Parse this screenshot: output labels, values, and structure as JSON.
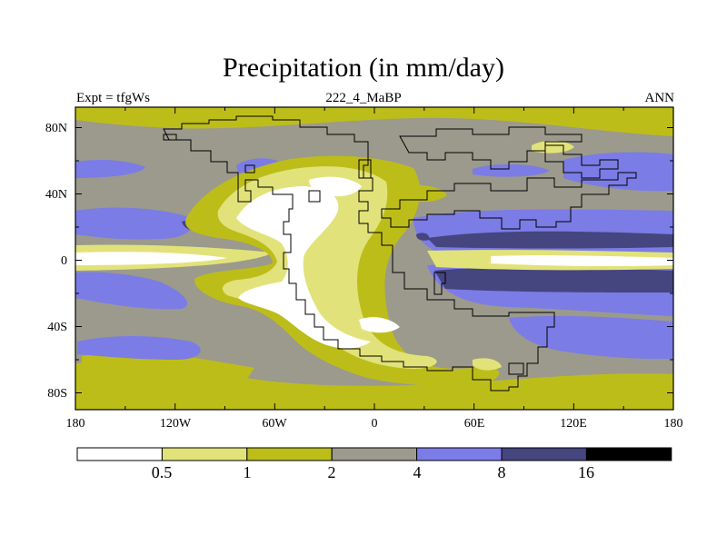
{
  "plot": {
    "title": "Precipitation (in mm/day)",
    "left_label": "Expt = tfgWs",
    "center_label": "222_4_MaBP",
    "right_label": "ANN"
  },
  "axes": {
    "lon_ticks": [
      "180",
      "120W",
      "60W",
      "0",
      "60E",
      "120E",
      "180"
    ],
    "lat_ticks": [
      "80N",
      "40N",
      "0",
      "40S",
      "80S"
    ]
  },
  "colorbar": {
    "levels": [
      "0.5",
      "1",
      "2",
      "4",
      "8",
      "16"
    ],
    "colors": [
      "#ffffff",
      "#e2e27a",
      "#bdbd1a",
      "#9b9a8c",
      "#7b7ce6",
      "#45457f",
      "#000000"
    ]
  },
  "map_colors": {
    "ocean_base": "#9b9a8c",
    "land_lines": "#000000"
  }
}
